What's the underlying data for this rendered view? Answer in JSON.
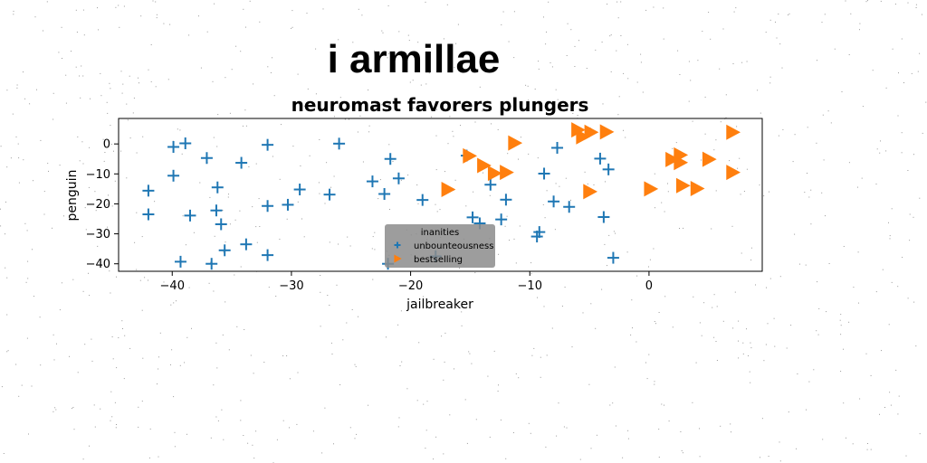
{
  "figure": {
    "suptitle": "i armillae"
  },
  "chart_data": {
    "type": "scatter",
    "title": "neuromast favorers plungers",
    "xlabel": "jailbreaker",
    "ylabel": "penguin",
    "xlim": [
      -44.5,
      9.5
    ],
    "ylim": [
      -42.5,
      8.5
    ],
    "xticks": [
      -40,
      -30,
      -20,
      -10,
      0
    ],
    "yticks": [
      0,
      -10,
      -20,
      -30,
      -40
    ],
    "grid": false,
    "legend": {
      "title": "inanities",
      "placement": "lower-center"
    },
    "series": [
      {
        "name": "unbounteousness",
        "marker": "plus",
        "color": "#1f77b4",
        "points": [
          [
            -39.9,
            -1.0
          ],
          [
            -38.9,
            0.2
          ],
          [
            -37.1,
            -4.7
          ],
          [
            -34.2,
            -6.3
          ],
          [
            -32.0,
            -0.3
          ],
          [
            -26.0,
            0.1
          ],
          [
            -21.7,
            -5.0
          ],
          [
            -21.0,
            -11.5
          ],
          [
            -23.2,
            -12.5
          ],
          [
            -39.9,
            -10.6
          ],
          [
            -42.0,
            -15.6
          ],
          [
            -36.2,
            -14.5
          ],
          [
            -29.3,
            -15.2
          ],
          [
            -26.8,
            -16.9
          ],
          [
            -22.2,
            -16.7
          ],
          [
            -19.0,
            -18.7
          ],
          [
            -42.0,
            -23.5
          ],
          [
            -38.5,
            -23.9
          ],
          [
            -36.3,
            -22.2
          ],
          [
            -35.9,
            -26.8
          ],
          [
            -32.0,
            -20.7
          ],
          [
            -30.3,
            -20.3
          ],
          [
            -33.8,
            -33.5
          ],
          [
            -35.6,
            -35.5
          ],
          [
            -32.0,
            -37.1
          ],
          [
            -39.3,
            -39.3
          ],
          [
            -36.7,
            -40.0
          ],
          [
            -21.9,
            -40.0
          ],
          [
            -17.9,
            -37.5
          ],
          [
            -14.8,
            -24.5
          ],
          [
            -14.2,
            -26.5
          ],
          [
            -12.4,
            -25.2
          ],
          [
            -12.0,
            -18.6
          ],
          [
            -13.3,
            -13.6
          ],
          [
            -9.4,
            -30.9
          ],
          [
            -9.2,
            -29.4
          ],
          [
            -8.0,
            -19.2
          ],
          [
            -8.8,
            -9.9
          ],
          [
            -7.7,
            -1.3
          ],
          [
            -6.7,
            -21.0
          ],
          [
            -4.1,
            -4.9
          ],
          [
            -3.4,
            -8.5
          ],
          [
            -3.8,
            -24.4
          ],
          [
            -3.0,
            -38.0
          ],
          [
            -15.3,
            -3.9
          ]
        ]
      },
      {
        "name": "bestselling",
        "marker": "triangle-right",
        "color": "#ff7f0e",
        "points": [
          [
            -6.0,
            4.7
          ],
          [
            -5.6,
            2.4
          ],
          [
            -4.9,
            3.9
          ],
          [
            -3.6,
            4.0
          ],
          [
            -11.3,
            0.3
          ],
          [
            -15.1,
            -4.0
          ],
          [
            -13.9,
            -7.2
          ],
          [
            -13.0,
            -9.8
          ],
          [
            -12.0,
            -9.5
          ],
          [
            -16.9,
            -15.2
          ],
          [
            -5.0,
            -15.9
          ],
          [
            0.1,
            -15.0
          ],
          [
            2.6,
            -3.7
          ],
          [
            2.6,
            -6.2
          ],
          [
            1.9,
            -5.2
          ],
          [
            5.0,
            -5.1
          ],
          [
            2.8,
            -13.9
          ],
          [
            4.0,
            -14.9
          ],
          [
            7.0,
            3.9
          ],
          [
            7.0,
            -9.5
          ]
        ]
      }
    ]
  }
}
